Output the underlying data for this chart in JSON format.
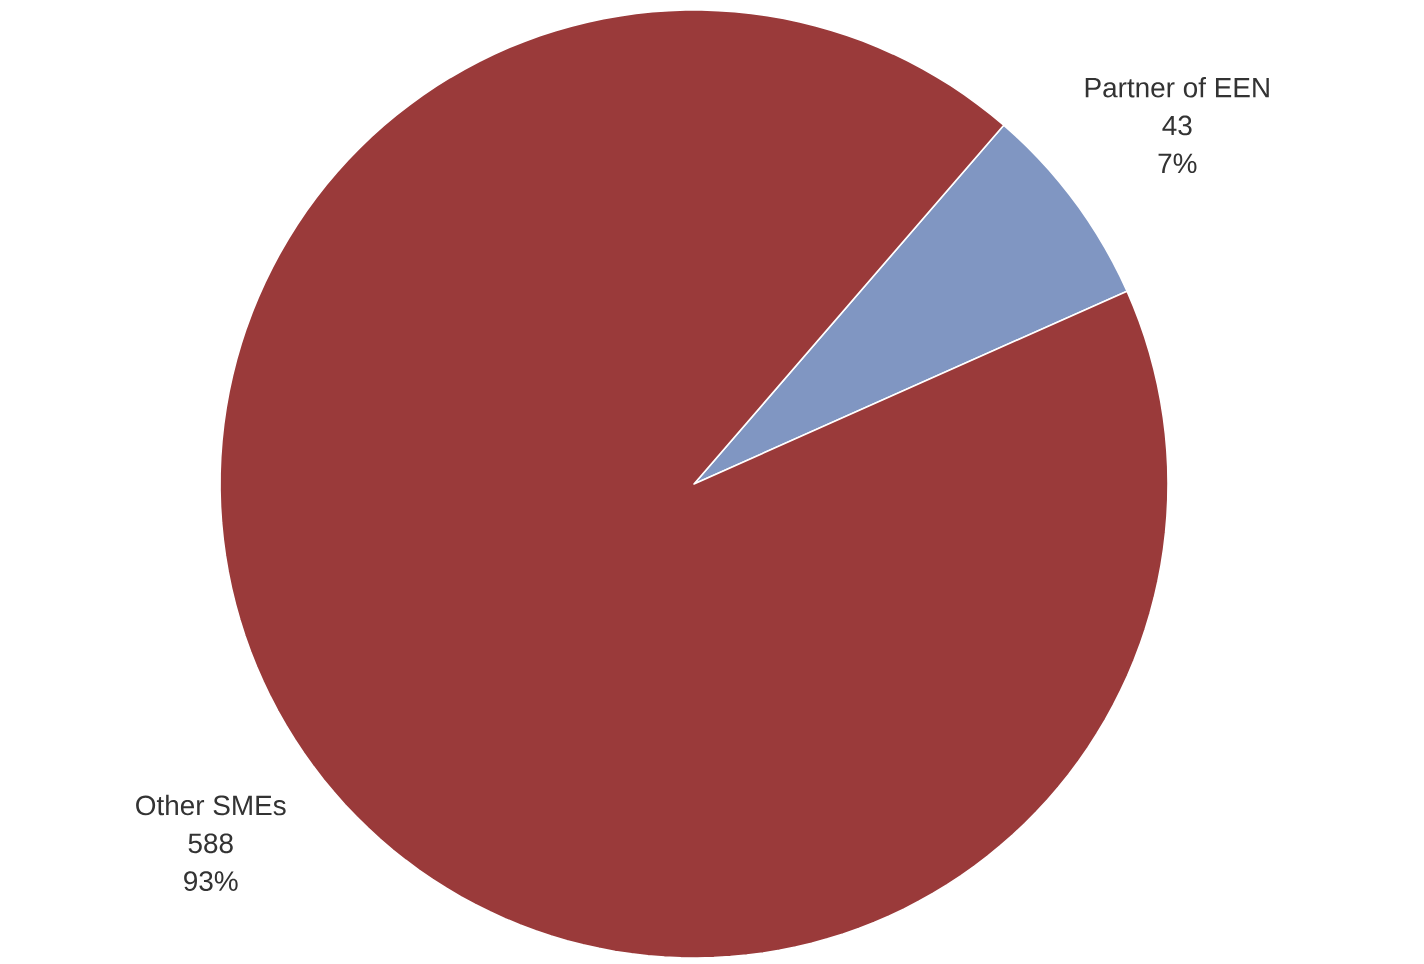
{
  "chart_data": {
    "type": "pie",
    "categories": [
      "Partner of EEN",
      "Other SMEs"
    ],
    "values": [
      7,
      93
    ],
    "value_labels": [
      "7%",
      "93%"
    ],
    "annotations": [
      "43",
      "588"
    ],
    "colors": [
      "#8096c2",
      "#9a3a3a"
    ]
  }
}
